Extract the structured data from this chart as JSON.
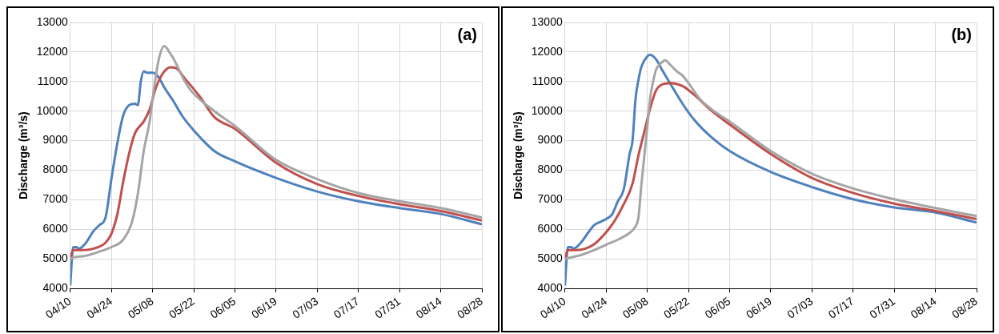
{
  "chart_data": [
    {
      "type": "line",
      "annotations": [
        "(a)"
      ],
      "ylabel": "Discharge (m³/s)",
      "ylim": [
        4000,
        13000
      ],
      "yticks": [
        4000,
        5000,
        6000,
        7000,
        8000,
        9000,
        10000,
        11000,
        12000,
        13000
      ],
      "xlim": [
        "--04-10",
        "--08-28"
      ],
      "xticks": [
        {
          "value": "--04-10",
          "label": "04/10"
        },
        {
          "value": "--04-24",
          "label": "04/24"
        },
        {
          "value": "--05-08",
          "label": "05/08"
        },
        {
          "value": "--05-22",
          "label": "05/22"
        },
        {
          "value": "--06-05",
          "label": "06/05"
        },
        {
          "value": "--06-19",
          "label": "06/19"
        },
        {
          "value": "--07-03",
          "label": "07/03"
        },
        {
          "value": "--07-17",
          "label": "07/17"
        },
        {
          "value": "--07-31",
          "label": "07/31"
        },
        {
          "value": "--08-14",
          "label": "08/14"
        },
        {
          "value": "--08-28",
          "label": "08/28"
        }
      ],
      "grid": true,
      "marker": "none",
      "line_style": "solid",
      "series": [
        {
          "color": "#a5a5a5",
          "x": [
            "--04-10",
            "--04-11",
            "--04-15",
            "--04-20",
            "--04-24",
            "--04-28",
            "--05-01",
            "--05-03",
            "--05-05",
            "--05-07",
            "--05-08",
            "--05-10",
            "--05-12",
            "--05-14",
            "--05-15",
            "--05-17",
            "--05-19",
            "--05-21",
            "--05-29",
            "--06-05",
            "--06-19",
            "--07-03",
            "--07-17",
            "--07-31",
            "--08-14",
            "--08-28"
          ],
          "values": [
            5000,
            5050,
            5100,
            5250,
            5400,
            5650,
            6250,
            7200,
            8650,
            9650,
            10400,
            11700,
            12200,
            11950,
            11800,
            11400,
            11000,
            10700,
            10000,
            9500,
            8350,
            7700,
            7230,
            6950,
            6720,
            6400
          ]
        },
        {
          "color": "#c0504d",
          "x": [
            "--04-10",
            "--04-11",
            "--04-14",
            "--04-18",
            "--04-22",
            "--04-24",
            "--04-26",
            "--04-28",
            "--04-30",
            "--05-02",
            "--05-05",
            "--05-07",
            "--05-09",
            "--05-11",
            "--05-14",
            "--05-16",
            "--05-19",
            "--05-24",
            "--05-29",
            "--06-05",
            "--06-19",
            "--07-03",
            "--07-17",
            "--07-31",
            "--08-14",
            "--08-28"
          ],
          "values": [
            5000,
            5300,
            5300,
            5350,
            5550,
            5850,
            6500,
            7600,
            8550,
            9250,
            9650,
            10050,
            10750,
            11200,
            11480,
            11450,
            11100,
            10500,
            9800,
            9400,
            8250,
            7530,
            7130,
            6850,
            6620,
            6300
          ]
        },
        {
          "color": "#4f81bd",
          "x": [
            "--04-10",
            "--04-11",
            "--04-12",
            "--04-13",
            "--04-15",
            "--04-18",
            "--04-20",
            "--04-22",
            "--04-24",
            "--04-26",
            "--04-28",
            "--04-30",
            "--05-02",
            "--05-03",
            "--05-04",
            "--05-05",
            "--05-06",
            "--05-08",
            "--05-10",
            "--05-12",
            "--05-15",
            "--05-18",
            "--05-22",
            "--05-29",
            "--06-05",
            "--06-19",
            "--07-03",
            "--07-17",
            "--07-31",
            "--08-14",
            "--08-28"
          ],
          "values": [
            4100,
            5400,
            5400,
            5350,
            5500,
            5950,
            6150,
            6400,
            7700,
            8900,
            9850,
            10200,
            10250,
            10200,
            11000,
            11350,
            11300,
            11300,
            11150,
            10800,
            10350,
            9850,
            9350,
            8650,
            8300,
            7740,
            7280,
            6950,
            6720,
            6520,
            6170
          ]
        }
      ]
    },
    {
      "type": "line",
      "annotations": [
        "(b)"
      ],
      "ylabel": "Discharge (m³/s)",
      "ylim": [
        4000,
        13000
      ],
      "yticks": [
        4000,
        5000,
        6000,
        7000,
        8000,
        9000,
        10000,
        11000,
        12000,
        13000
      ],
      "xlim": [
        "--04-10",
        "--08-28"
      ],
      "xticks": [
        {
          "value": "--04-10",
          "label": "04/10"
        },
        {
          "value": "--04-24",
          "label": "04/24"
        },
        {
          "value": "--05-08",
          "label": "05/08"
        },
        {
          "value": "--05-22",
          "label": "05/22"
        },
        {
          "value": "--06-05",
          "label": "06/05"
        },
        {
          "value": "--06-19",
          "label": "06/19"
        },
        {
          "value": "--07-03",
          "label": "07/03"
        },
        {
          "value": "--07-17",
          "label": "07/17"
        },
        {
          "value": "--07-31",
          "label": "07/31"
        },
        {
          "value": "--08-14",
          "label": "08/14"
        },
        {
          "value": "--08-28",
          "label": "08/28"
        }
      ],
      "grid": true,
      "marker": "none",
      "line_style": "solid",
      "series": [
        {
          "color": "#a5a5a5",
          "x": [
            "--04-10",
            "--04-12",
            "--04-16",
            "--04-20",
            "--04-24",
            "--04-28",
            "--05-02",
            "--05-04",
            "--05-05",
            "--05-06",
            "--05-08",
            "--05-09",
            "--05-10",
            "--05-11",
            "--05-13",
            "--05-14",
            "--05-16",
            "--05-18",
            "--05-20",
            "--05-22",
            "--05-26",
            "--05-30",
            "--06-05",
            "--06-19",
            "--07-03",
            "--07-17",
            "--07-31",
            "--08-14",
            "--08-28"
          ],
          "values": [
            5000,
            5050,
            5150,
            5300,
            5480,
            5650,
            5880,
            6100,
            6400,
            7500,
            9450,
            10450,
            11000,
            11400,
            11650,
            11720,
            11550,
            11350,
            11200,
            10950,
            10400,
            10050,
            9650,
            8650,
            7880,
            7380,
            7020,
            6720,
            6450
          ]
        },
        {
          "color": "#c0504d",
          "x": [
            "--04-10",
            "--04-11",
            "--04-14",
            "--04-17",
            "--04-20",
            "--04-24",
            "--04-27",
            "--04-30",
            "--05-03",
            "--05-05",
            "--05-07",
            "--05-09",
            "--05-11",
            "--05-13",
            "--05-16",
            "--05-20",
            "--05-24",
            "--05-30",
            "--06-05",
            "--06-19",
            "--07-03",
            "--07-17",
            "--07-31",
            "--08-14",
            "--08-28"
          ],
          "values": [
            5000,
            5300,
            5300,
            5350,
            5500,
            5900,
            6300,
            6850,
            7550,
            8500,
            9300,
            10100,
            10700,
            10900,
            10950,
            10850,
            10550,
            10000,
            9550,
            8550,
            7740,
            7230,
            6870,
            6620,
            6350
          ]
        },
        {
          "color": "#4f81bd",
          "x": [
            "--04-10",
            "--04-11",
            "--04-12",
            "--04-13",
            "--04-15",
            "--04-18",
            "--04-20",
            "--04-22",
            "--04-24",
            "--04-26",
            "--04-28",
            "--04-30",
            "--05-02",
            "--05-03",
            "--05-04",
            "--05-05",
            "--05-06",
            "--05-08",
            "--05-09",
            "--05-11",
            "--05-13",
            "--05-16",
            "--05-20",
            "--05-24",
            "--05-30",
            "--06-05",
            "--06-19",
            "--07-03",
            "--07-17",
            "--07-31",
            "--08-14",
            "--08-28"
          ],
          "values": [
            4100,
            5400,
            5400,
            5350,
            5500,
            5900,
            6150,
            6250,
            6350,
            6500,
            6950,
            7350,
            8550,
            9000,
            10400,
            11050,
            11500,
            11850,
            11900,
            11750,
            11400,
            10900,
            10250,
            9700,
            9100,
            8650,
            7940,
            7430,
            7020,
            6740,
            6570,
            6230
          ]
        }
      ]
    }
  ]
}
